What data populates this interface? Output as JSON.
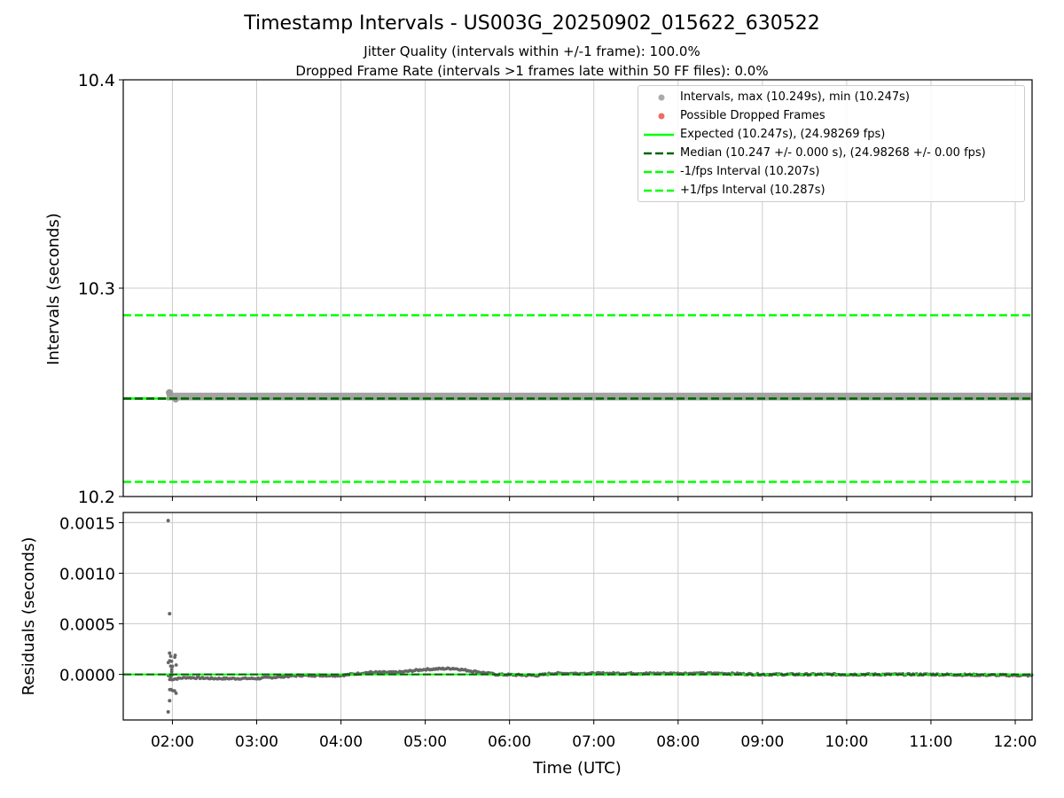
{
  "title": "Timestamp Intervals - US003G_20250902_015622_630522",
  "subtitle_1": "Jitter Quality (intervals within +/-1 frame): 100.0%",
  "subtitle_2": "Dropped Frame Rate (intervals >1 frames late within 50 FF files): 0.0%",
  "colors": {
    "intervals": "#999999",
    "dropped": "#e8473f",
    "expected": "#00ff00",
    "median": "#006400",
    "fps_band": "#00ff00",
    "residual_points": "#666666",
    "grid": "#cccccc"
  },
  "chart_data": [
    {
      "type": "scatter",
      "panel": "top",
      "xlabel": "",
      "ylabel": "Intervals (seconds)",
      "xlim": [
        "01:25",
        "12:12"
      ],
      "ylim": [
        10.2,
        10.4
      ],
      "y_ticks": [
        "10.2",
        "10.3",
        "10.4"
      ],
      "grid": true,
      "legend_position": "top-right",
      "legend": [
        {
          "label": "Intervals, max (10.249s), min (10.247s)",
          "style": "dot-gray"
        },
        {
          "label": "Possible Dropped Frames",
          "style": "dot-red"
        },
        {
          "label": "Expected (10.247s), (24.98269 fps)",
          "style": "line-solid-lime"
        },
        {
          "label": "Median (10.247 +/- 0.000 s), (24.98268 +/- 0.00 fps)",
          "style": "line-dashed-darkgreen"
        },
        {
          "label": "-1/fps Interval (10.207s)",
          "style": "line-dashed-lime"
        },
        {
          "label": "+1/fps Interval (10.287s)",
          "style": "line-dashed-lime"
        }
      ],
      "series": [
        {
          "name": "Intervals, max (10.249s), min (10.247s)",
          "x_range": [
            "01:56",
            "12:12"
          ],
          "y_min": 10.247,
          "y_max": 10.249
        },
        {
          "name": "Possible Dropped Frames",
          "x": [],
          "y": []
        }
      ],
      "reference_lines": [
        {
          "name": "Expected (10.247s), (24.98269 fps)",
          "y": 10.247
        },
        {
          "name": "Median (10.247 +/- 0.000 s), (24.98268 +/- 0.00 fps)",
          "y": 10.247
        },
        {
          "name": "-1/fps Interval (10.207s)",
          "y": 10.207
        },
        {
          "name": "+1/fps Interval (10.287s)",
          "y": 10.287
        }
      ]
    },
    {
      "type": "scatter",
      "panel": "bottom",
      "xlabel": "Time (UTC)",
      "ylabel": "Residuals (seconds)",
      "x_ticks": [
        "02:00",
        "03:00",
        "04:00",
        "05:00",
        "06:00",
        "07:00",
        "08:00",
        "09:00",
        "10:00",
        "11:00",
        "12:00"
      ],
      "y_ticks": [
        "0.0000",
        "0.0005",
        "0.0010",
        "0.0015"
      ],
      "ylim": [
        -0.00045,
        0.0016
      ],
      "grid": true,
      "outliers": [
        {
          "x": "01:57",
          "y": 0.00152
        },
        {
          "x": "01:58",
          "y": 0.0006
        },
        {
          "x": "01:58",
          "y": 0.00021
        },
        {
          "x": "01:57",
          "y": -0.00037
        },
        {
          "x": "01:58",
          "y": -0.00026
        },
        {
          "x": "01:59",
          "y": -0.00015
        },
        {
          "x": "02:00",
          "y": 8e-05
        }
      ],
      "residual_trend": [
        {
          "x": "01:58",
          "y": -5e-05
        },
        {
          "x": "02:10",
          "y": -3e-05
        },
        {
          "x": "02:30",
          "y": -4e-05
        },
        {
          "x": "03:00",
          "y": -4e-05
        },
        {
          "x": "03:30",
          "y": -1e-05
        },
        {
          "x": "04:00",
          "y": -1e-05
        },
        {
          "x": "04:20",
          "y": 2e-05
        },
        {
          "x": "04:40",
          "y": 2e-05
        },
        {
          "x": "05:00",
          "y": 5e-05
        },
        {
          "x": "05:20",
          "y": 6e-05
        },
        {
          "x": "05:30",
          "y": 4e-05
        },
        {
          "x": "05:50",
          "y": 0.0
        },
        {
          "x": "06:20",
          "y": -1e-05
        },
        {
          "x": "06:30",
          "y": 1e-05
        },
        {
          "x": "07:30",
          "y": 1e-05
        },
        {
          "x": "08:30",
          "y": 1e-05
        },
        {
          "x": "09:00",
          "y": 0.0
        },
        {
          "x": "10:00",
          "y": 0.0
        },
        {
          "x": "11:00",
          "y": 0.0
        },
        {
          "x": "12:12",
          "y": -1e-05
        }
      ],
      "reference_lines": [
        {
          "name": "Expected",
          "y": 0.0
        },
        {
          "name": "Median",
          "y": 0.0
        }
      ]
    }
  ]
}
